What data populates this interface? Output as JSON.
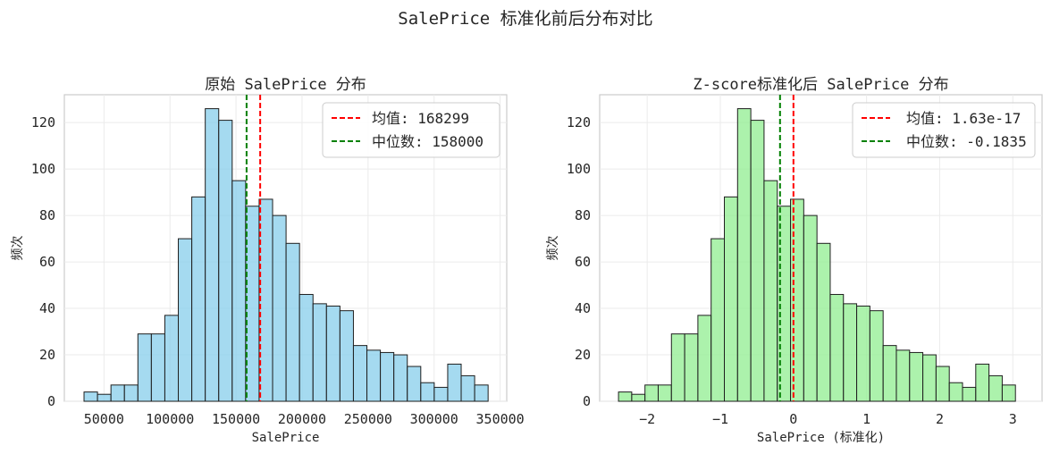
{
  "figure": {
    "suptitle": "SalePrice 标准化前后分布对比"
  },
  "chart_data": [
    {
      "type": "bar",
      "title": "原始 SalePrice 分布",
      "xlabel": "SalePrice",
      "ylabel": "频次",
      "bin_start": 34900,
      "bin_width": 10200,
      "values": [
        4,
        3,
        7,
        7,
        29,
        29,
        37,
        70,
        88,
        126,
        121,
        95,
        84,
        87,
        80,
        68,
        46,
        42,
        41,
        39,
        24,
        22,
        21,
        20,
        15,
        8,
        6,
        16,
        11,
        7
      ],
      "xlim": [
        20000,
        355000
      ],
      "ylim": [
        0,
        132
      ],
      "xticks": [
        50000,
        100000,
        150000,
        200000,
        250000,
        300000,
        350000
      ],
      "xtick_labels": [
        "50000",
        "100000",
        "150000",
        "200000",
        "250000",
        "300000",
        "350000"
      ],
      "yticks": [
        0,
        20,
        40,
        60,
        80,
        100,
        120
      ],
      "ytick_labels": [
        "0",
        "20",
        "40",
        "60",
        "80",
        "100",
        "120"
      ],
      "bar_color": "#87ceeb",
      "mean": 168299,
      "median": 158000,
      "legend": [
        {
          "label": "均值: 168299",
          "color": "#ff0000"
        },
        {
          "label": "中位数: 158000",
          "color": "#008000"
        }
      ],
      "legend_position": "upper-right",
      "grid": true
    },
    {
      "type": "bar",
      "title": "Z-score标准化后 SalePrice 分布",
      "xlabel": "SalePrice (标准化)",
      "ylabel": "频次",
      "bin_start": -2.3925,
      "bin_width": 0.18095,
      "values": [
        4,
        3,
        7,
        7,
        29,
        29,
        37,
        70,
        88,
        126,
        121,
        95,
        84,
        87,
        80,
        68,
        46,
        42,
        41,
        39,
        24,
        22,
        21,
        20,
        15,
        8,
        6,
        16,
        11,
        7
      ],
      "xlim": [
        -2.65,
        3.4
      ],
      "ylim": [
        0,
        132
      ],
      "xticks": [
        -2,
        -1,
        0,
        1,
        2,
        3
      ],
      "xtick_labels": [
        "−2",
        "−1",
        "0",
        "1",
        "2",
        "3"
      ],
      "yticks": [
        0,
        20,
        40,
        60,
        80,
        100,
        120
      ],
      "ytick_labels": [
        "0",
        "20",
        "40",
        "60",
        "80",
        "100",
        "120"
      ],
      "bar_color": "#90ee90",
      "mean": 0,
      "median": -0.1835,
      "legend": [
        {
          "label": "均值: 1.63e-17",
          "color": "#ff0000"
        },
        {
          "label": "中位数: -0.1835",
          "color": "#008000"
        }
      ],
      "legend_position": "upper-right",
      "grid": true
    }
  ]
}
